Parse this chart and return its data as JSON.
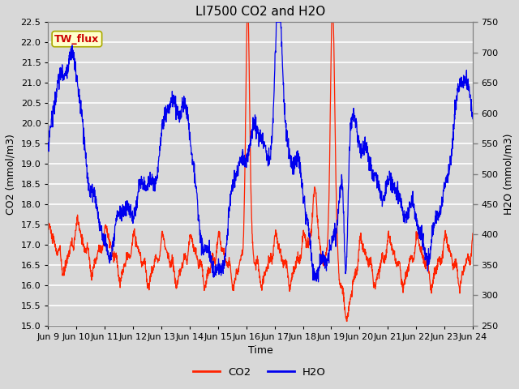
{
  "title": "LI7500 CO2 and H2O",
  "xlabel": "Time",
  "ylabel_left": "CO2 (mmol/m3)",
  "ylabel_right": "H2O (mmol/m3)",
  "co2_color": "#ff2200",
  "h2o_color": "#0000ee",
  "co2_label": "CO2",
  "h2o_label": "H2O",
  "ylim_left": [
    15.0,
    22.5
  ],
  "ylim_right": [
    250,
    750
  ],
  "fig_bg_color": "#d8d8d8",
  "plot_bg_color": "#d8d8d8",
  "annotation_text": "TW_flux",
  "annotation_bg": "#ffffcc",
  "annotation_border": "#aaaa00",
  "annotation_text_color": "#cc0000",
  "xtick_labels": [
    "Jun 9",
    "Jun 10",
    "Jun 11",
    "Jun 12",
    "Jun 13",
    "Jun 14",
    "Jun 15",
    "Jun 16",
    "Jun 17",
    "Jun 18",
    "Jun 19",
    "Jun 20",
    "Jun 21",
    "Jun 22",
    "Jun 23",
    "Jun 24"
  ],
  "n_points": 2000,
  "title_fontsize": 11,
  "axis_label_fontsize": 9,
  "tick_fontsize": 8
}
